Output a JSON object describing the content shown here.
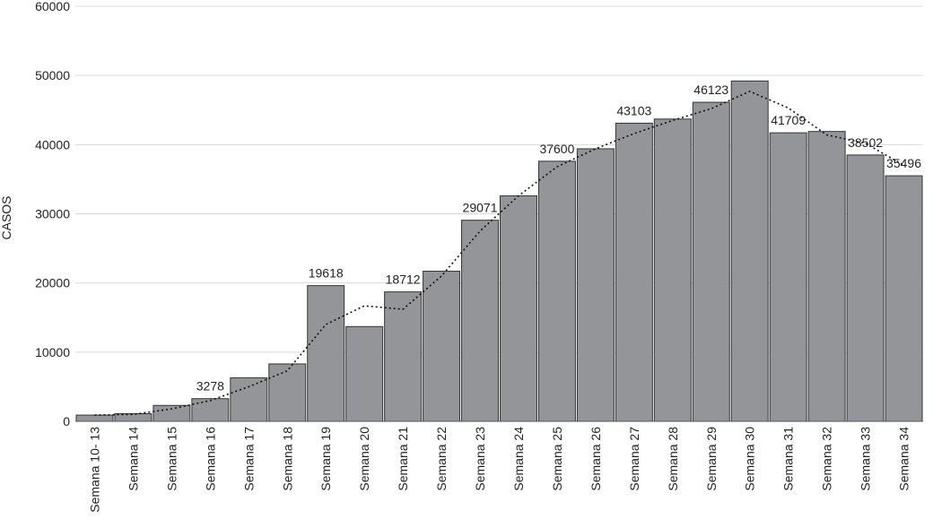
{
  "chart_data": {
    "type": "bar",
    "title": "",
    "xlabel": "",
    "ylabel": "CASOS",
    "ylim": [
      0,
      60000
    ],
    "yticks": [
      0,
      10000,
      20000,
      30000,
      40000,
      50000,
      60000
    ],
    "grid": true,
    "legend": "none",
    "categories": [
      "Semana 10- 13",
      "Semana 14",
      "Semana 15",
      "Semana 16",
      "Semana 17",
      "Semana 18",
      "Semana 19",
      "Semana 20",
      "Semana 21",
      "Semana 22",
      "Semana 23",
      "Semana 24",
      "Semana 25",
      "Semana 26",
      "Semana 27",
      "Semana 28",
      "Semana 29",
      "Semana 30",
      "Semana 31",
      "Semana 32",
      "Semana 33",
      "Semana 34"
    ],
    "values": [
      900,
      1100,
      2300,
      3278,
      6300,
      8300,
      19618,
      13700,
      18712,
      21700,
      29071,
      32600,
      37600,
      39400,
      43103,
      43700,
      46123,
      49200,
      41709,
      41900,
      38502,
      35496
    ],
    "labeled_indices": [
      3,
      6,
      8,
      10,
      12,
      14,
      16,
      18,
      20,
      21
    ],
    "trendline": {
      "style": "dotted",
      "values": [
        900,
        1000,
        1800,
        3000,
        5000,
        7300,
        14000,
        16700,
        16200,
        21000,
        27500,
        32600,
        36800,
        39400,
        41600,
        43500,
        45200,
        47700,
        45300,
        41400,
        40200,
        37000
      ]
    },
    "colors": {
      "bar_fill": "#939598",
      "bar_stroke": "#333333",
      "grid": "#d9d9d9",
      "axis": "#555555",
      "trend": "#111111"
    }
  }
}
